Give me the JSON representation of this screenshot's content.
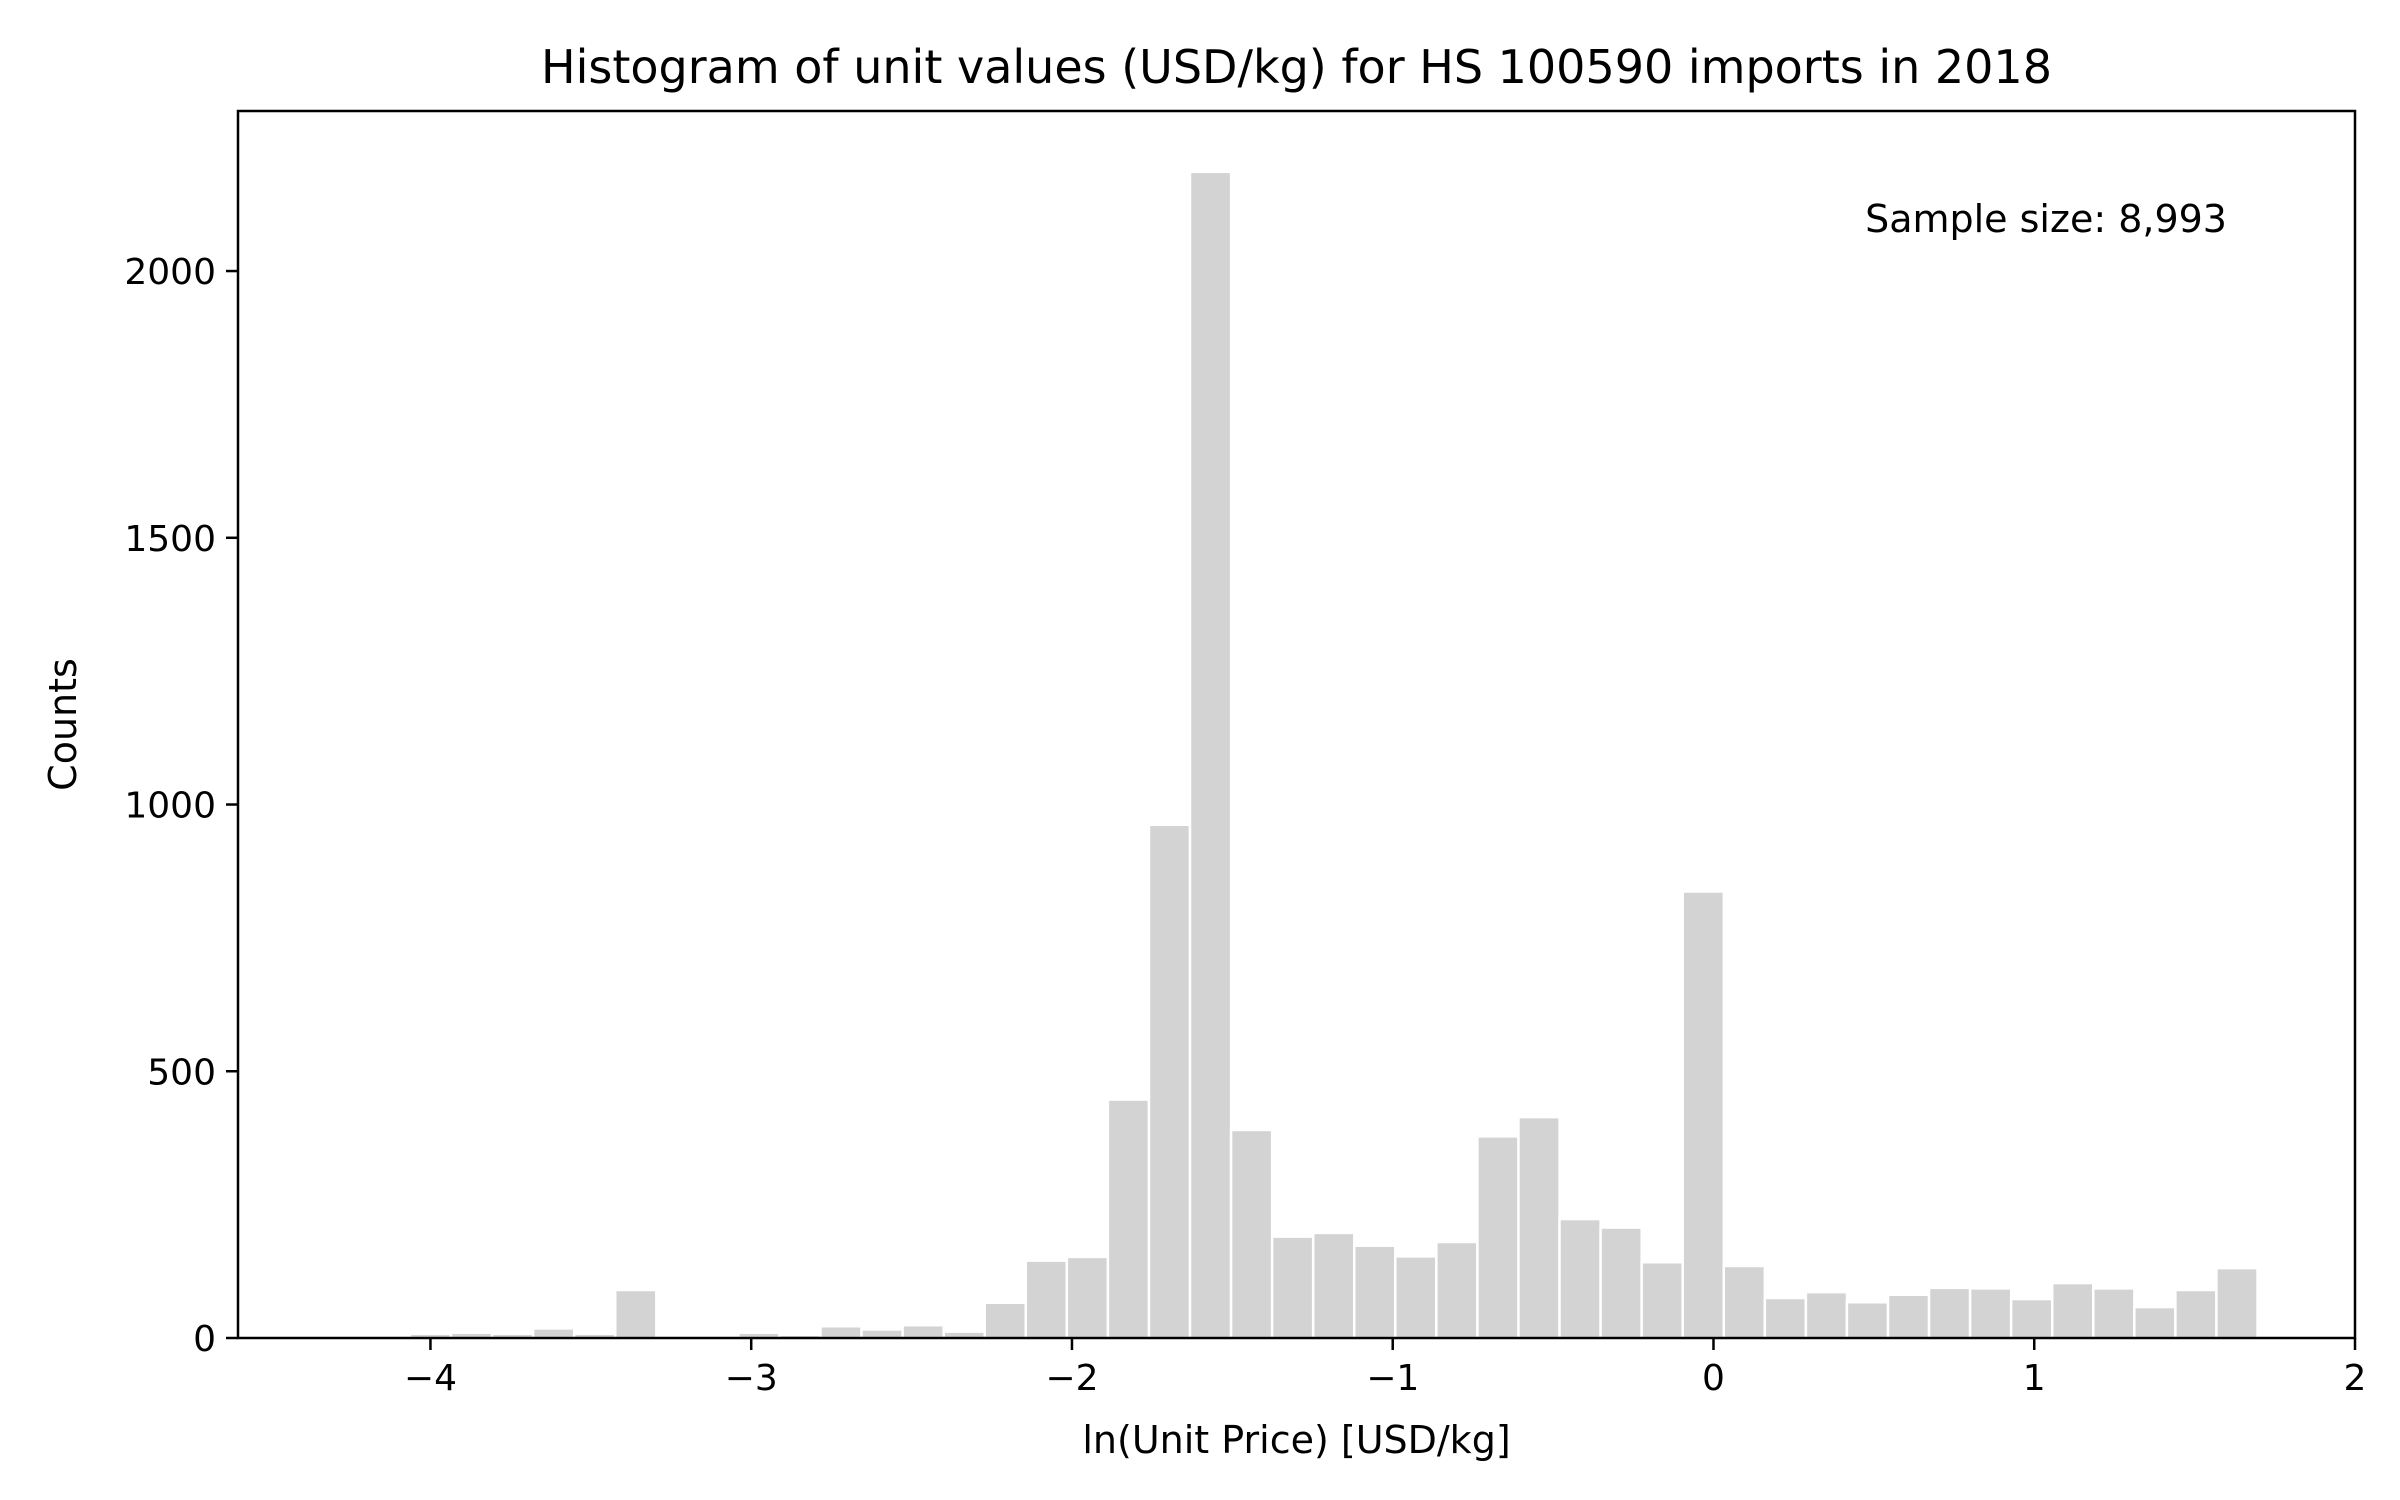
{
  "chart_data": {
    "type": "bar",
    "title": "Histogram of unit values (USD/kg) for HS 100590 imports in 2018",
    "xlabel": "ln(Unit Price) [USD/kg]",
    "ylabel": "Counts",
    "annotation": "Sample size: 8,993",
    "xlim": [
      -4.6,
      2.0
    ],
    "ylim": [
      0,
      2300
    ],
    "xticks": [
      {
        "value": -4,
        "label": "−4"
      },
      {
        "value": -3,
        "label": "−3"
      },
      {
        "value": -2,
        "label": "−2"
      },
      {
        "value": -1,
        "label": "−1"
      },
      {
        "value": 0,
        "label": "0"
      },
      {
        "value": 1,
        "label": "1"
      },
      {
        "value": 2,
        "label": "2"
      }
    ],
    "yticks": [
      {
        "value": 0,
        "label": "0"
      },
      {
        "value": 500,
        "label": "500"
      },
      {
        "value": 1000,
        "label": "1000"
      },
      {
        "value": 1500,
        "label": "1500"
      },
      {
        "value": 2000,
        "label": "2000"
      }
    ],
    "bin_width": 0.1282,
    "bar_color": "#d3d3d3",
    "bars": [
      {
        "x0": -4.32,
        "value": 4
      },
      {
        "x0": -4.192,
        "value": 2
      },
      {
        "x0": -4.064,
        "value": 8
      },
      {
        "x0": -3.936,
        "value": 10
      },
      {
        "x0": -3.808,
        "value": 8
      },
      {
        "x0": -3.68,
        "value": 18
      },
      {
        "x0": -3.552,
        "value": 8
      },
      {
        "x0": -3.424,
        "value": 90
      },
      {
        "x0": -3.296,
        "value": 2
      },
      {
        "x0": -3.168,
        "value": 2
      },
      {
        "x0": -3.04,
        "value": 10
      },
      {
        "x0": -2.912,
        "value": 6
      },
      {
        "x0": -2.784,
        "value": 22
      },
      {
        "x0": -2.656,
        "value": 16
      },
      {
        "x0": -2.528,
        "value": 24
      },
      {
        "x0": -2.4,
        "value": 12
      },
      {
        "x0": -2.272,
        "value": 66
      },
      {
        "x0": -2.144,
        "value": 145
      },
      {
        "x0": -2.016,
        "value": 152
      },
      {
        "x0": -1.888,
        "value": 447
      },
      {
        "x0": -1.76,
        "value": 962
      },
      {
        "x0": -1.632,
        "value": 2186
      },
      {
        "x0": -1.504,
        "value": 390
      },
      {
        "x0": -1.376,
        "value": 190
      },
      {
        "x0": -1.248,
        "value": 197
      },
      {
        "x0": -1.12,
        "value": 173
      },
      {
        "x0": -0.992,
        "value": 153
      },
      {
        "x0": -0.864,
        "value": 180
      },
      {
        "x0": -0.736,
        "value": 378
      },
      {
        "x0": -0.608,
        "value": 414
      },
      {
        "x0": -0.48,
        "value": 223
      },
      {
        "x0": -0.352,
        "value": 207
      },
      {
        "x0": -0.224,
        "value": 142
      },
      {
        "x0": -0.096,
        "value": 837
      },
      {
        "x0": 0.032,
        "value": 135
      },
      {
        "x0": 0.16,
        "value": 75
      },
      {
        "x0": 0.288,
        "value": 86
      },
      {
        "x0": 0.416,
        "value": 67
      },
      {
        "x0": 0.544,
        "value": 81
      },
      {
        "x0": 0.672,
        "value": 94
      },
      {
        "x0": 0.8,
        "value": 93
      },
      {
        "x0": 0.928,
        "value": 73
      },
      {
        "x0": 1.056,
        "value": 103
      },
      {
        "x0": 1.184,
        "value": 93
      },
      {
        "x0": 1.312,
        "value": 58
      },
      {
        "x0": 1.44,
        "value": 90
      },
      {
        "x0": 1.568,
        "value": 131
      }
    ]
  }
}
